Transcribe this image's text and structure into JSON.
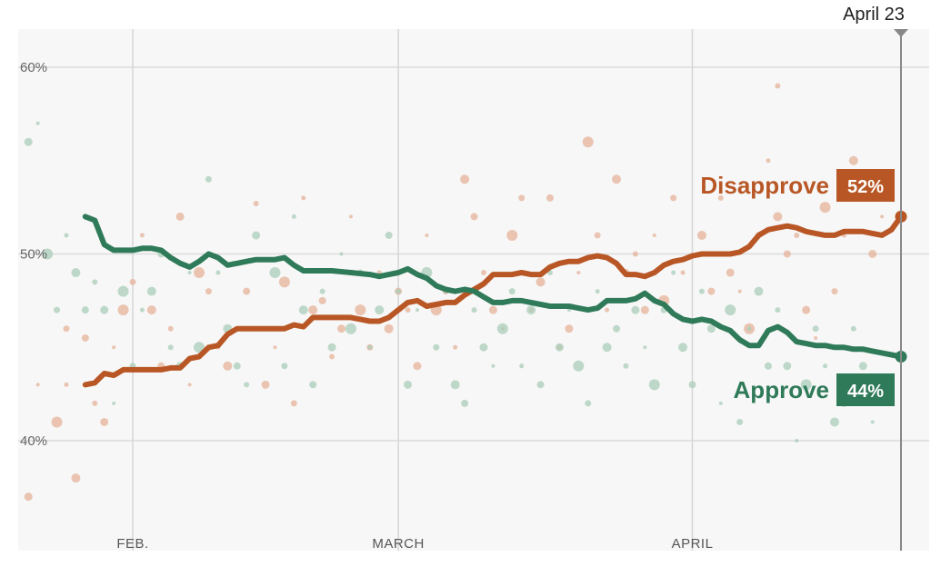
{
  "chart_data": {
    "type": "line",
    "title": "",
    "xlabel": "",
    "ylabel": "",
    "ylim": [
      35,
      63
    ],
    "y_ticks": [
      {
        "value": 40,
        "label": "40%"
      },
      {
        "value": 50,
        "label": "50%"
      },
      {
        "value": 60,
        "label": "60%"
      }
    ],
    "x_range_days": [
      0,
      94
    ],
    "x_ticks": [
      {
        "day": 12,
        "label": "FEB."
      },
      {
        "day": 40,
        "label": "MARCH"
      },
      {
        "day": 71,
        "label": "APRIL"
      }
    ],
    "current_date": {
      "day": 93,
      "label": "April 23"
    },
    "series": [
      {
        "name": "Disapprove",
        "label": "Disapprove",
        "end_label": "52%",
        "end_value": 52,
        "color": "#b85725",
        "dot_color": "#e6b39a",
        "points": [
          [
            7,
            43
          ],
          [
            8,
            43.1
          ],
          [
            9,
            43.6
          ],
          [
            10,
            43.5
          ],
          [
            11,
            43.8
          ],
          [
            12,
            43.8
          ],
          [
            14,
            43.8
          ],
          [
            15,
            43.8
          ],
          [
            16,
            43.9
          ],
          [
            17,
            43.9
          ],
          [
            18,
            44.4
          ],
          [
            19,
            44.5
          ],
          [
            20,
            45
          ],
          [
            21,
            45.1
          ],
          [
            22,
            45.7
          ],
          [
            23,
            46
          ],
          [
            25,
            46
          ],
          [
            26,
            46
          ],
          [
            27,
            46
          ],
          [
            28,
            46
          ],
          [
            29,
            46.2
          ],
          [
            30,
            46.1
          ],
          [
            31,
            46.6
          ],
          [
            33,
            46.6
          ],
          [
            34,
            46.6
          ],
          [
            35,
            46.6
          ],
          [
            36,
            46.5
          ],
          [
            37,
            46.4
          ],
          [
            38,
            46.4
          ],
          [
            39,
            46.6
          ],
          [
            40,
            47
          ],
          [
            41,
            47.4
          ],
          [
            42,
            47.5
          ],
          [
            43,
            47.2
          ],
          [
            44,
            47.3
          ],
          [
            45,
            47.4
          ],
          [
            46,
            47.4
          ],
          [
            47,
            47.8
          ],
          [
            48,
            48.1
          ],
          [
            49,
            48.4
          ],
          [
            50,
            48.9
          ],
          [
            51,
            48.9
          ],
          [
            52,
            48.9
          ],
          [
            53,
            49
          ],
          [
            54,
            48.9
          ],
          [
            55,
            48.9
          ],
          [
            56,
            49.3
          ],
          [
            57,
            49.5
          ],
          [
            58,
            49.6
          ],
          [
            59,
            49.6
          ],
          [
            60,
            49.8
          ],
          [
            61,
            49.9
          ],
          [
            62,
            49.8
          ],
          [
            63,
            49.5
          ],
          [
            64,
            48.9
          ],
          [
            65,
            48.9
          ],
          [
            66,
            48.8
          ],
          [
            67,
            49
          ],
          [
            68,
            49.4
          ],
          [
            69,
            49.6
          ],
          [
            70,
            49.7
          ],
          [
            71,
            49.9
          ],
          [
            72,
            50
          ],
          [
            73,
            50
          ],
          [
            74,
            50
          ],
          [
            75,
            50
          ],
          [
            76,
            50.1
          ],
          [
            77,
            50.4
          ],
          [
            78,
            51
          ],
          [
            79,
            51.3
          ],
          [
            80,
            51.4
          ],
          [
            81,
            51.5
          ],
          [
            82,
            51.4
          ],
          [
            83,
            51.2
          ],
          [
            84,
            51.1
          ],
          [
            85,
            51
          ],
          [
            86,
            51
          ],
          [
            87,
            51.2
          ],
          [
            88,
            51.2
          ],
          [
            89,
            51.2
          ],
          [
            90,
            51.1
          ],
          [
            91,
            51
          ],
          [
            92,
            51.3
          ],
          [
            93,
            52
          ]
        ]
      },
      {
        "name": "Approve",
        "label": "Approve",
        "end_label": "44%",
        "end_value": 44.5,
        "color": "#2f7a59",
        "dot_color": "#a9cdb9",
        "points": [
          [
            7,
            52
          ],
          [
            8,
            51.8
          ],
          [
            9,
            50.5
          ],
          [
            10,
            50.2
          ],
          [
            12,
            50.2
          ],
          [
            13,
            50.3
          ],
          [
            14,
            50.3
          ],
          [
            15,
            50.2
          ],
          [
            16,
            49.8
          ],
          [
            17,
            49.5
          ],
          [
            18,
            49.3
          ],
          [
            19,
            49.6
          ],
          [
            20,
            50
          ],
          [
            21,
            49.8
          ],
          [
            22,
            49.4
          ],
          [
            23,
            49.5
          ],
          [
            24,
            49.6
          ],
          [
            25,
            49.7
          ],
          [
            26,
            49.7
          ],
          [
            27,
            49.7
          ],
          [
            28,
            49.8
          ],
          [
            29,
            49.4
          ],
          [
            30,
            49.1
          ],
          [
            31,
            49.1
          ],
          [
            33,
            49.1
          ],
          [
            35,
            49
          ],
          [
            37,
            48.9
          ],
          [
            38,
            48.8
          ],
          [
            39,
            48.9
          ],
          [
            40,
            49
          ],
          [
            41,
            49.2
          ],
          [
            42,
            48.9
          ],
          [
            43,
            48.7
          ],
          [
            44,
            48.3
          ],
          [
            45,
            48.1
          ],
          [
            46,
            48
          ],
          [
            47,
            48.1
          ],
          [
            48,
            48
          ],
          [
            49,
            47.7
          ],
          [
            50,
            47.4
          ],
          [
            51,
            47.4
          ],
          [
            52,
            47.5
          ],
          [
            53,
            47.5
          ],
          [
            54,
            47.4
          ],
          [
            55,
            47.3
          ],
          [
            56,
            47.2
          ],
          [
            57,
            47.2
          ],
          [
            58,
            47.2
          ],
          [
            59,
            47.1
          ],
          [
            60,
            47
          ],
          [
            61,
            47.1
          ],
          [
            62,
            47.5
          ],
          [
            63,
            47.5
          ],
          [
            64,
            47.5
          ],
          [
            65,
            47.6
          ],
          [
            66,
            47.9
          ],
          [
            67,
            47.5
          ],
          [
            68,
            47.3
          ],
          [
            69,
            46.8
          ],
          [
            70,
            46.5
          ],
          [
            71,
            46.4
          ],
          [
            72,
            46.5
          ],
          [
            73,
            46.4
          ],
          [
            74,
            46.1
          ],
          [
            75,
            45.9
          ],
          [
            76,
            45.4
          ],
          [
            77,
            45.1
          ],
          [
            78,
            45.1
          ],
          [
            79,
            45.9
          ],
          [
            80,
            46.1
          ],
          [
            81,
            45.8
          ],
          [
            82,
            45.3
          ],
          [
            83,
            45.2
          ],
          [
            84,
            45.1
          ],
          [
            85,
            45.1
          ],
          [
            86,
            45
          ],
          [
            87,
            45
          ],
          [
            88,
            44.9
          ],
          [
            89,
            44.9
          ],
          [
            90,
            44.8
          ],
          [
            91,
            44.7
          ],
          [
            92,
            44.6
          ],
          [
            93,
            44.5
          ]
        ]
      }
    ],
    "individual_polls": {
      "Disapprove": [
        [
          -1,
          39
        ],
        [
          1,
          37
        ],
        [
          2,
          43
        ],
        [
          4,
          41
        ],
        [
          5,
          46
        ],
        [
          5,
          43
        ],
        [
          6,
          38
        ],
        [
          7,
          45.5
        ],
        [
          8,
          42
        ],
        [
          9,
          41
        ],
        [
          10,
          45
        ],
        [
          11,
          47
        ],
        [
          12,
          48.5
        ],
        [
          13,
          51
        ],
        [
          14,
          47
        ],
        [
          15,
          44
        ],
        [
          16,
          46
        ],
        [
          17,
          52
        ],
        [
          18,
          43
        ],
        [
          19,
          49
        ],
        [
          20,
          48
        ],
        [
          21,
          45
        ],
        [
          22,
          44
        ],
        [
          24,
          48
        ],
        [
          25,
          52.7
        ],
        [
          26,
          43
        ],
        [
          27,
          45
        ],
        [
          28,
          48.5
        ],
        [
          29,
          42
        ],
        [
          30,
          53
        ],
        [
          31,
          47
        ],
        [
          32,
          47.5
        ],
        [
          33,
          44.5
        ],
        [
          34,
          46
        ],
        [
          35,
          52
        ],
        [
          36,
          47
        ],
        [
          37,
          45
        ],
        [
          38,
          49
        ],
        [
          39,
          46
        ],
        [
          40,
          48
        ],
        [
          41,
          47
        ],
        [
          42,
          44
        ],
        [
          43,
          51
        ],
        [
          44,
          47
        ],
        [
          45,
          48
        ],
        [
          46,
          45
        ],
        [
          47,
          54
        ],
        [
          48,
          52
        ],
        [
          49,
          49
        ],
        [
          50,
          47
        ],
        [
          51,
          46
        ],
        [
          52,
          51
        ],
        [
          53,
          53
        ],
        [
          54,
          47
        ],
        [
          55,
          48.5
        ],
        [
          56,
          53
        ],
        [
          57,
          45
        ],
        [
          58,
          46
        ],
        [
          59,
          49
        ],
        [
          60,
          56
        ],
        [
          61,
          51
        ],
        [
          62,
          47
        ],
        [
          63,
          54
        ],
        [
          64,
          49
        ],
        [
          65,
          50
        ],
        [
          66,
          47
        ],
        [
          67,
          51
        ],
        [
          68,
          47.5
        ],
        [
          69,
          53
        ],
        [
          70,
          49
        ],
        [
          72,
          51
        ],
        [
          73,
          48
        ],
        [
          74,
          53
        ],
        [
          75,
          49
        ],
        [
          76,
          48
        ],
        [
          77,
          46
        ],
        [
          78,
          51
        ],
        [
          79,
          55
        ],
        [
          80,
          52
        ],
        [
          81,
          50
        ],
        [
          82,
          51
        ],
        [
          83,
          47
        ],
        [
          84,
          45.5
        ],
        [
          85,
          52.5
        ],
        [
          86,
          48
        ],
        [
          87,
          51
        ],
        [
          88,
          55
        ],
        [
          89,
          53
        ],
        [
          80,
          59
        ],
        [
          90,
          50
        ],
        [
          91,
          52
        ]
      ],
      "Approve": [
        [
          -1,
          56
        ],
        [
          1,
          56
        ],
        [
          2,
          57
        ],
        [
          3,
          50
        ],
        [
          4,
          47
        ],
        [
          5,
          51
        ],
        [
          6,
          49
        ],
        [
          7,
          47
        ],
        [
          8,
          48.5
        ],
        [
          9,
          47
        ],
        [
          10,
          42
        ],
        [
          11,
          48
        ],
        [
          12,
          44
        ],
        [
          13,
          47
        ],
        [
          14,
          48
        ],
        [
          15,
          50
        ],
        [
          16,
          45
        ],
        [
          17,
          44
        ],
        [
          18,
          49
        ],
        [
          19,
          45
        ],
        [
          20,
          54
        ],
        [
          21,
          49
        ],
        [
          22,
          46
        ],
        [
          23,
          44
        ],
        [
          24,
          43
        ],
        [
          25,
          51
        ],
        [
          26,
          46
        ],
        [
          27,
          49
        ],
        [
          28,
          44
        ],
        [
          29,
          52
        ],
        [
          30,
          47
        ],
        [
          31,
          43
        ],
        [
          32,
          48
        ],
        [
          33,
          45
        ],
        [
          34,
          50
        ],
        [
          35,
          46
        ],
        [
          36,
          49
        ],
        [
          37,
          45
        ],
        [
          38,
          47
        ],
        [
          39,
          51
        ],
        [
          40,
          48
        ],
        [
          41,
          43
        ],
        [
          42,
          47
        ],
        [
          43,
          49
        ],
        [
          44,
          45
        ],
        [
          45,
          48
        ],
        [
          46,
          43
        ],
        [
          47,
          42
        ],
        [
          48,
          47
        ],
        [
          49,
          45
        ],
        [
          50,
          44
        ],
        [
          51,
          46
        ],
        [
          52,
          48
        ],
        [
          53,
          44
        ],
        [
          54,
          47
        ],
        [
          55,
          43
        ],
        [
          56,
          49
        ],
        [
          57,
          45
        ],
        [
          58,
          47
        ],
        [
          59,
          44
        ],
        [
          60,
          42
        ],
        [
          61,
          48
        ],
        [
          62,
          45
        ],
        [
          63,
          46
        ],
        [
          64,
          44
        ],
        [
          65,
          47
        ],
        [
          66,
          45
        ],
        [
          67,
          43
        ],
        [
          68,
          47
        ],
        [
          69,
          49
        ],
        [
          70,
          45
        ],
        [
          71,
          43
        ],
        [
          72,
          48
        ],
        [
          73,
          46
        ],
        [
          74,
          42
        ],
        [
          75,
          47
        ],
        [
          76,
          41
        ],
        [
          77,
          46
        ],
        [
          78,
          48
        ],
        [
          79,
          44
        ],
        [
          80,
          47
        ],
        [
          81,
          44
        ],
        [
          82,
          40
        ],
        [
          83,
          43
        ],
        [
          84,
          46
        ],
        [
          85,
          44
        ],
        [
          86,
          41
        ],
        [
          87,
          42
        ],
        [
          88,
          46
        ],
        [
          89,
          44
        ],
        [
          90,
          41
        ],
        [
          91,
          43
        ]
      ]
    }
  }
}
